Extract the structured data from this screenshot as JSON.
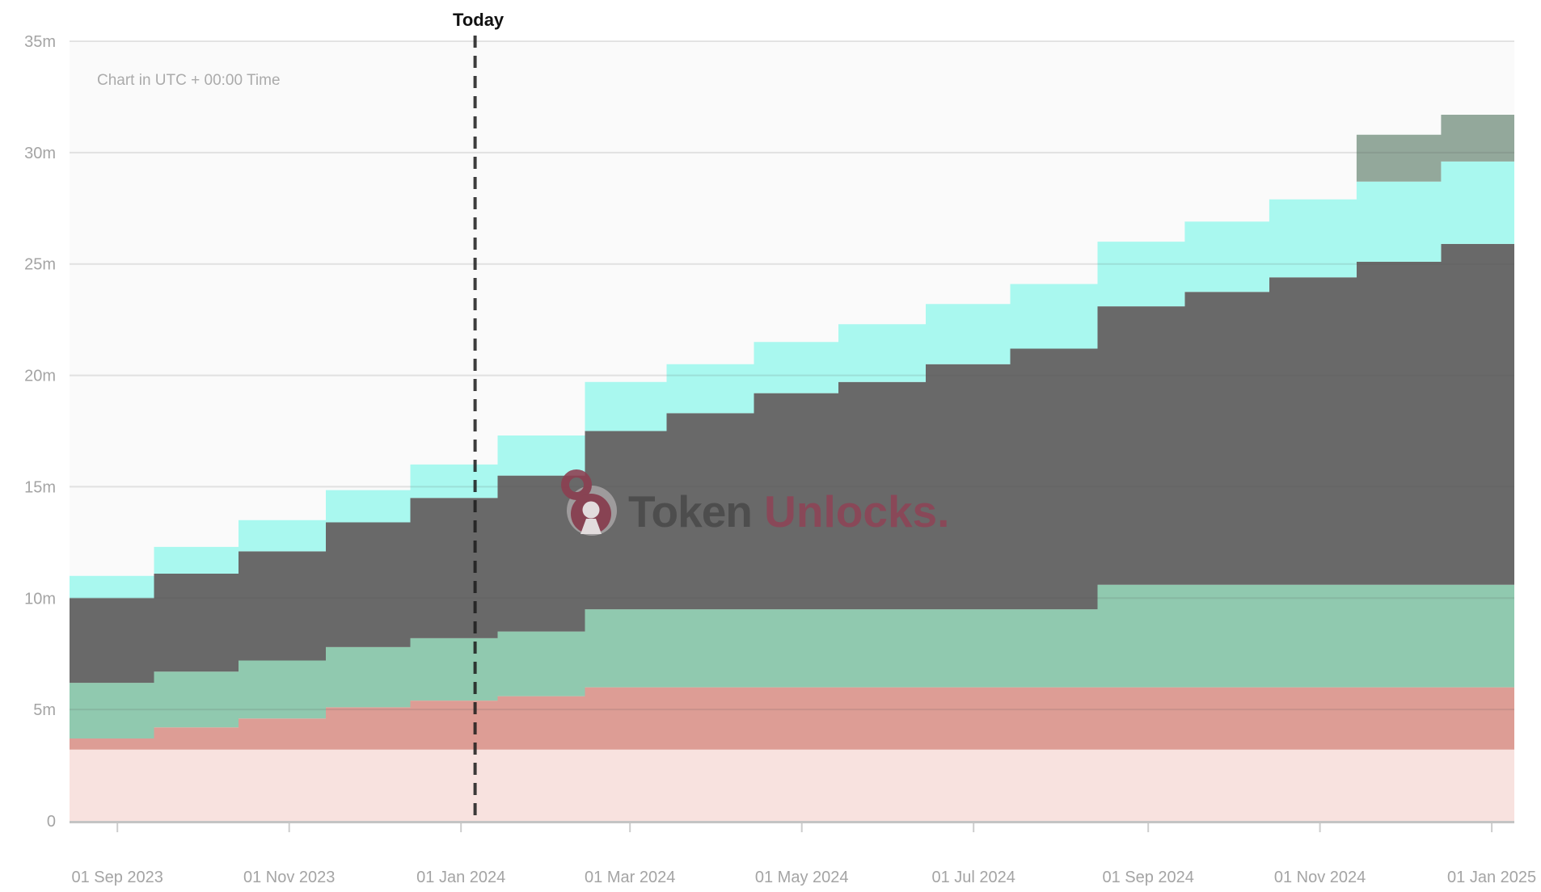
{
  "page": {
    "background": "#ffffff",
    "plot_background": "#fafafa"
  },
  "header": {
    "utc_note": "Chart in UTC + 00:00 Time"
  },
  "watermark": {
    "icon": "padlock-icon",
    "brand_bold": "Token",
    "brand_accent": "Unlocks."
  },
  "colors": {
    "gridline": "rgba(90,90,90,0.15)",
    "axis_line": "#c4c4c4",
    "tick_mark": "#cdcdcd",
    "axis_label": "#a4a4a4",
    "today_line": "#1c1c1c",
    "watermark_maroon": "#8d3e50",
    "watermark_charcoal": "#4a4a4a"
  },
  "chart_data": {
    "type": "area",
    "stacked": true,
    "step": true,
    "title": "",
    "xlabel": "",
    "ylabel": "",
    "unit": "m = millions of tokens",
    "ylim": [
      0,
      35
    ],
    "grid": "horizontal",
    "legend": "none",
    "x_domain": [
      "2023-08-15",
      "2025-01-09"
    ],
    "y_ticks": [
      {
        "value": 35,
        "label": "35m"
      },
      {
        "value": 30,
        "label": "30m"
      },
      {
        "value": 25,
        "label": "25m"
      },
      {
        "value": 20,
        "label": "20m"
      },
      {
        "value": 15,
        "label": "15m"
      },
      {
        "value": 10,
        "label": "10m"
      },
      {
        "value": 5,
        "label": "5m"
      },
      {
        "value": 0,
        "label": "0"
      }
    ],
    "x_ticks": [
      {
        "date": "2023-09-01",
        "label": "01 Sep 2023"
      },
      {
        "date": "2023-11-01",
        "label": "01 Nov 2023"
      },
      {
        "date": "2024-01-01",
        "label": "01 Jan 2024"
      },
      {
        "date": "2024-03-01",
        "label": "01 Mar 2024"
      },
      {
        "date": "2024-05-01",
        "label": "01 May 2024"
      },
      {
        "date": "2024-07-01",
        "label": "01 Jul 2024"
      },
      {
        "date": "2024-09-01",
        "label": "01 Sep 2024"
      },
      {
        "date": "2024-11-01",
        "label": "01 Nov 2024"
      },
      {
        "date": "2025-01-01",
        "label": "01 Jan 2025"
      }
    ],
    "today": {
      "date": "2024-01-06",
      "label": "Today"
    },
    "step_dates": [
      "2023-08-15",
      "2023-09-14",
      "2023-10-14",
      "2023-11-14",
      "2023-12-14",
      "2024-01-14",
      "2024-02-14",
      "2024-03-14",
      "2024-04-14",
      "2024-05-14",
      "2024-06-14",
      "2024-07-14",
      "2024-08-14",
      "2024-09-14",
      "2024-10-14",
      "2024-11-14",
      "2024-12-14",
      "2025-01-09"
    ],
    "series": [
      {
        "name": "pink",
        "color": "#f8e2df",
        "values": [
          3.2,
          3.2,
          3.2,
          3.2,
          3.2,
          3.2,
          3.2,
          3.2,
          3.2,
          3.2,
          3.2,
          3.2,
          3.2,
          3.2,
          3.2,
          3.2,
          3.2
        ]
      },
      {
        "name": "salmon",
        "color": "#dd9d95",
        "values": [
          0.5,
          1.0,
          1.4,
          1.9,
          2.2,
          2.4,
          2.8,
          2.8,
          2.8,
          2.8,
          2.8,
          2.8,
          2.8,
          2.8,
          2.8,
          2.8,
          2.8
        ]
      },
      {
        "name": "green",
        "color": "#90c9af",
        "values": [
          2.5,
          2.5,
          2.6,
          2.7,
          2.8,
          2.9,
          3.5,
          3.5,
          3.5,
          3.5,
          3.5,
          3.5,
          4.6,
          4.6,
          4.6,
          4.6,
          4.6
        ]
      },
      {
        "name": "gray",
        "color": "#696969",
        "values": [
          3.8,
          4.4,
          4.9,
          5.6,
          6.3,
          7.0,
          8.0,
          8.8,
          9.7,
          10.2,
          11.0,
          11.7,
          12.5,
          13.15,
          13.8,
          14.5,
          15.3
        ]
      },
      {
        "name": "cyan",
        "color": "#a9f8ef",
        "values": [
          1.0,
          1.2,
          1.4,
          1.45,
          1.5,
          1.8,
          2.2,
          2.2,
          2.3,
          2.6,
          2.7,
          2.9,
          2.9,
          3.15,
          3.5,
          3.6,
          3.7
        ]
      },
      {
        "name": "sage",
        "color": "#93a89b",
        "values": [
          0,
          0,
          0,
          0,
          0,
          0,
          0,
          0,
          0,
          0,
          0,
          0,
          0,
          0,
          0,
          2.1,
          2.1
        ]
      }
    ]
  }
}
